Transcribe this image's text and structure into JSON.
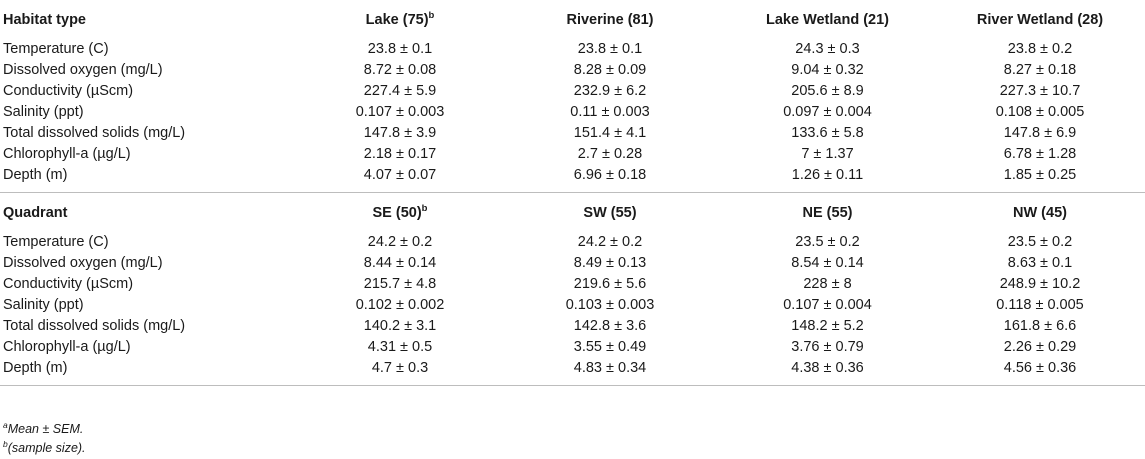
{
  "section1": {
    "header": {
      "label": "Habitat type",
      "cols": [
        {
          "text": "Lake (75)",
          "sup": "b"
        },
        {
          "text": "Riverine (81)",
          "sup": ""
        },
        {
          "text": "Lake Wetland (21)",
          "sup": ""
        },
        {
          "text": "River Wetland (28)",
          "sup": ""
        }
      ]
    },
    "rows": [
      {
        "label": "Temperature (C)",
        "values": [
          "23.8 ± 0.1",
          "23.8 ± 0.1",
          "24.3 ± 0.3",
          "23.8 ± 0.2"
        ]
      },
      {
        "label": "Dissolved oxygen (mg/L)",
        "values": [
          "8.72 ± 0.08",
          "8.28 ± 0.09",
          "9.04 ± 0.32",
          "8.27 ± 0.18"
        ]
      },
      {
        "label": "Conductivity (µScm)",
        "values": [
          "227.4 ± 5.9",
          "232.9 ± 6.2",
          "205.6 ± 8.9",
          "227.3 ± 10.7"
        ]
      },
      {
        "label": "Salinity (ppt)",
        "values": [
          "0.107 ± 0.003",
          "0.11 ± 0.003",
          "0.097 ± 0.004",
          "0.108 ± 0.005"
        ]
      },
      {
        "label": "Total dissolved solids (mg/L)",
        "values": [
          "147.8 ± 3.9",
          "151.4 ± 4.1",
          "133.6 ± 5.8",
          "147.8 ± 6.9"
        ]
      },
      {
        "label": "Chlorophyll-a (µg/L)",
        "values": [
          "2.18 ± 0.17",
          "2.7 ± 0.28",
          "7 ± 1.37",
          "6.78 ± 1.28"
        ]
      },
      {
        "label": "Depth (m)",
        "values": [
          "4.07 ± 0.07",
          "6.96 ± 0.18",
          "1.26 ± 0.11",
          "1.85 ± 0.25"
        ]
      }
    ]
  },
  "section2": {
    "header": {
      "label": "Quadrant",
      "cols": [
        {
          "text": "SE (50)",
          "sup": "b"
        },
        {
          "text": "SW (55)",
          "sup": ""
        },
        {
          "text": "NE (55)",
          "sup": ""
        },
        {
          "text": "NW (45)",
          "sup": ""
        }
      ]
    },
    "rows": [
      {
        "label": "Temperature (C)",
        "values": [
          "24.2 ± 0.2",
          "24.2 ± 0.2",
          "23.5 ± 0.2",
          "23.5 ± 0.2"
        ]
      },
      {
        "label": "Dissolved oxygen (mg/L)",
        "values": [
          "8.44 ± 0.14",
          "8.49 ± 0.13",
          "8.54 ± 0.14",
          "8.63 ± 0.1"
        ]
      },
      {
        "label": "Conductivity (µScm)",
        "values": [
          "215.7 ± 4.8",
          "219.6 ± 5.6",
          "228 ± 8",
          "248.9 ± 10.2"
        ]
      },
      {
        "label": "Salinity (ppt)",
        "values": [
          "0.102 ± 0.002",
          "0.103 ± 0.003",
          "0.107 ± 0.004",
          "0.118 ± 0.005"
        ]
      },
      {
        "label": "Total dissolved solids (mg/L)",
        "values": [
          "140.2 ± 3.1",
          "142.8 ± 3.6",
          "148.2 ± 5.2",
          "161.8 ± 6.6"
        ]
      },
      {
        "label": "Chlorophyll-a (µg/L)",
        "values": [
          "4.31 ± 0.5",
          "3.55 ± 0.49",
          "3.76 ± 0.79",
          "2.26 ± 0.29"
        ]
      },
      {
        "label": "Depth (m)",
        "values": [
          "4.7 ± 0.3",
          "4.83 ± 0.34",
          "4.38 ± 0.36",
          "4.56 ± 0.36"
        ]
      }
    ]
  },
  "footnotes": [
    {
      "sup": "a",
      "text": "Mean ± SEM."
    },
    {
      "sup": "b",
      "text": "(sample size)."
    }
  ]
}
